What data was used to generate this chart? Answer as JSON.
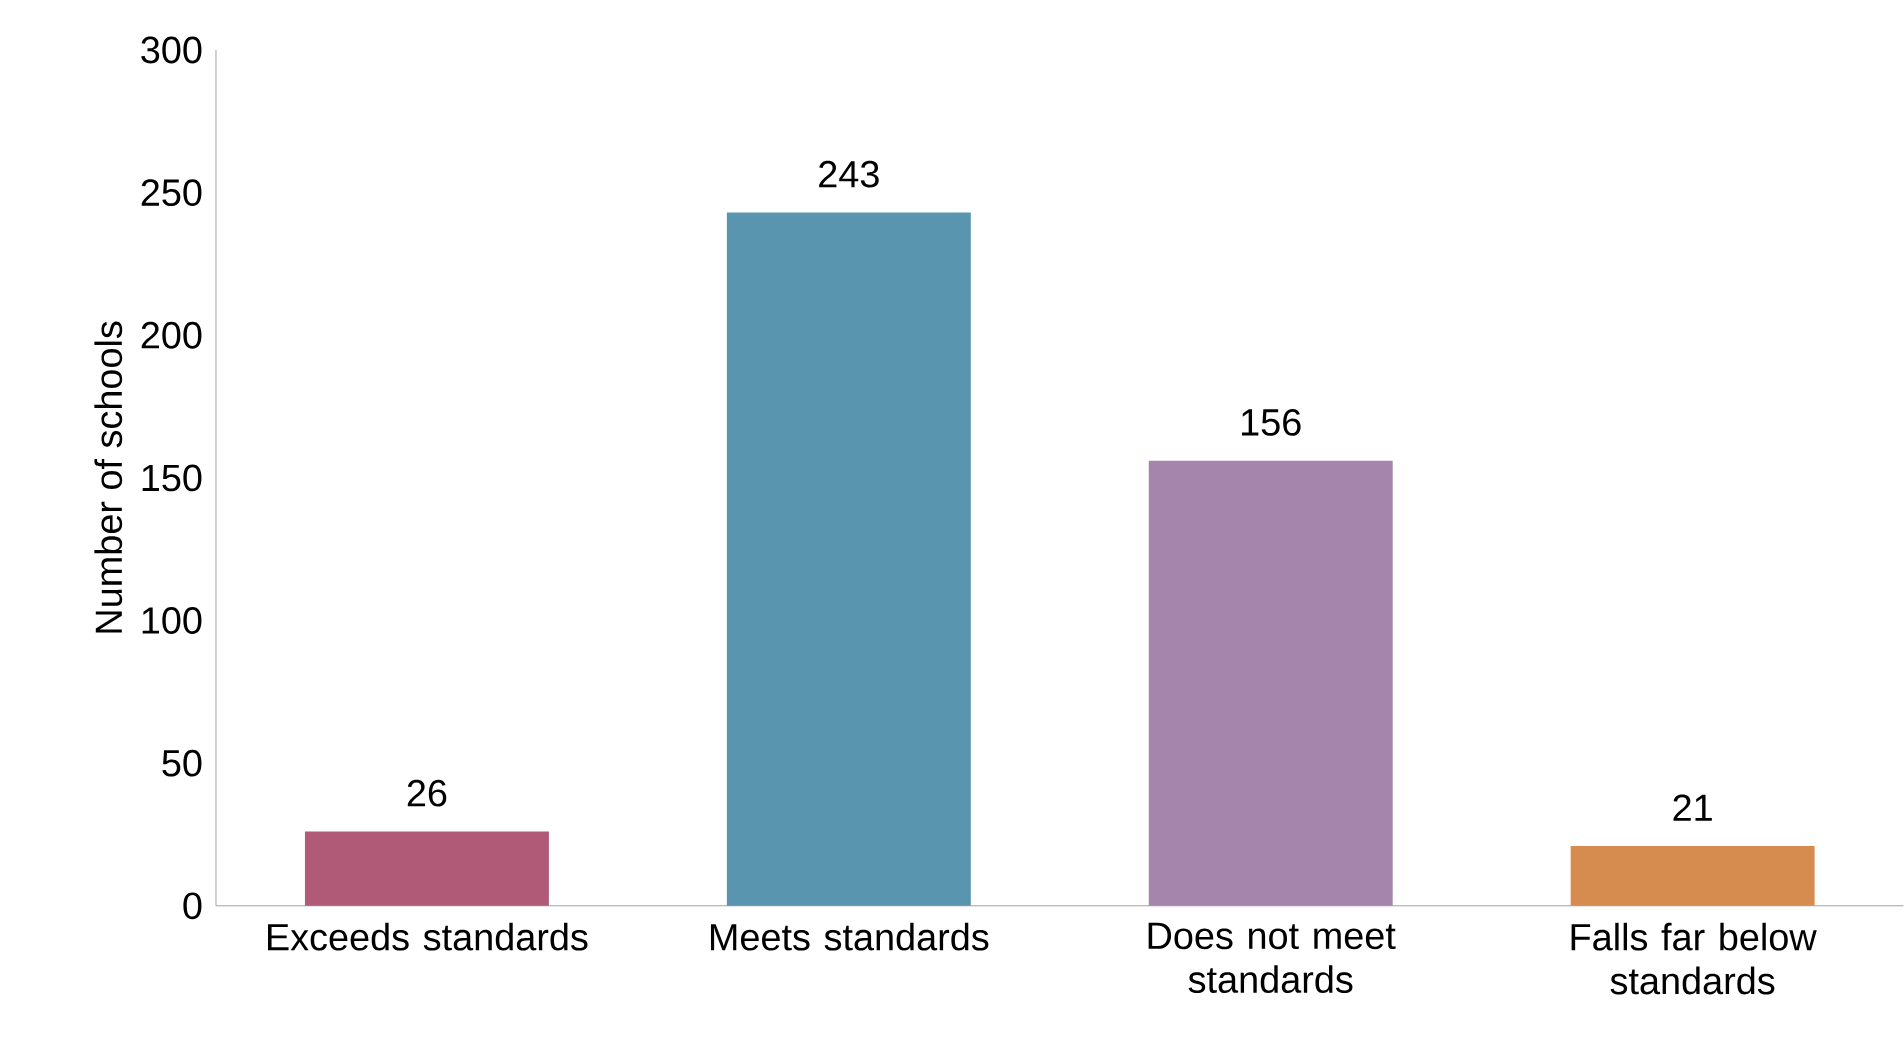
{
  "chart_data": {
    "type": "bar",
    "ylabel": "Number of schools",
    "categories": [
      "Exceeds standards",
      "Meets standards",
      "Does not meet standards",
      "Falls far below standards"
    ],
    "values": [
      26,
      243,
      156,
      21
    ],
    "colors": [
      "#b05a78",
      "#5a95b0",
      "#a585ab",
      "#d68c4e"
    ],
    "ylim": [
      0,
      300
    ],
    "yticks": [
      0,
      50,
      100,
      150,
      200,
      250,
      300
    ],
    "data_labels": true
  }
}
